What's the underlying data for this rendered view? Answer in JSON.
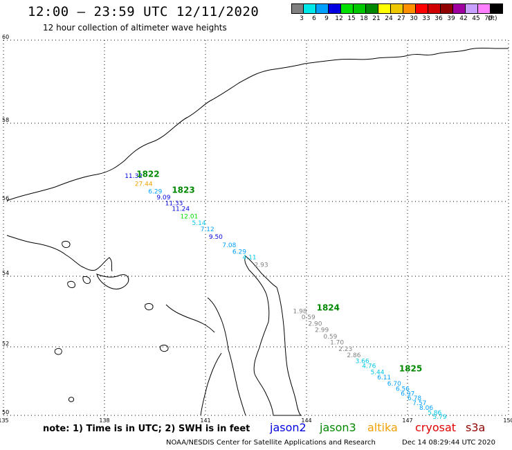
{
  "header": {
    "title": "12:00 – 23:59 UTC 12/11/2020",
    "subtitle": "12 hour collection of altimeter wave heights"
  },
  "legend": {
    "unit": "(ft)",
    "bins": [
      {
        "label": "3",
        "color": "#808080"
      },
      {
        "label": "6",
        "color": "#00e8e8"
      },
      {
        "label": "9",
        "color": "#00a0ff"
      },
      {
        "label": "12",
        "color": "#0000e0"
      },
      {
        "label": "15",
        "color": "#00e000"
      },
      {
        "label": "18",
        "color": "#00c800"
      },
      {
        "label": "21",
        "color": "#008800"
      },
      {
        "label": "24",
        "color": "#ffff00"
      },
      {
        "label": "27",
        "color": "#f0c800"
      },
      {
        "label": "30",
        "color": "#ff9000"
      },
      {
        "label": "33",
        "color": "#ff0000"
      },
      {
        "label": "36",
        "color": "#d00000"
      },
      {
        "label": "39",
        "color": "#900000"
      },
      {
        "label": "42",
        "color": "#a000a0"
      },
      {
        "label": "45",
        "color": "#c8a0ff"
      },
      {
        "label": "70",
        "color": "#ff80ff"
      },
      {
        "label": "",
        "color": "#000000"
      }
    ]
  },
  "axes": {
    "lon_ticks": [
      "135",
      "138",
      "141",
      "144",
      "147",
      "150"
    ],
    "lat_ticks": [
      "50",
      "52",
      "54",
      "56",
      "58",
      "60"
    ]
  },
  "observations": [
    {
      "value": "11.32",
      "color": "#0000e0",
      "lon": 138.6,
      "lat": 56.6
    },
    {
      "value": "27.44",
      "color": "#f0a000",
      "lon": 138.9,
      "lat": 56.4
    },
    {
      "value": "6.29",
      "color": "#00a0ff",
      "lon": 139.3,
      "lat": 56.2
    },
    {
      "value": "9.09",
      "color": "#0000e0",
      "lon": 139.55,
      "lat": 56.05
    },
    {
      "value": "11.33",
      "color": "#0000e0",
      "lon": 139.8,
      "lat": 55.9
    },
    {
      "value": "11.24",
      "color": "#0000e0",
      "lon": 140.0,
      "lat": 55.75
    },
    {
      "value": "12.01",
      "color": "#00e000",
      "lon": 140.25,
      "lat": 55.55
    },
    {
      "value": "5.14",
      "color": "#00c8e8",
      "lon": 140.6,
      "lat": 55.37
    },
    {
      "value": "7.12",
      "color": "#00a0ff",
      "lon": 140.85,
      "lat": 55.2
    },
    {
      "value": "9.50",
      "color": "#0000e0",
      "lon": 141.1,
      "lat": 55.0
    },
    {
      "value": "7.08",
      "color": "#00a0ff",
      "lon": 141.5,
      "lat": 54.78
    },
    {
      "value": "6.29",
      "color": "#00a0ff",
      "lon": 141.8,
      "lat": 54.6
    },
    {
      "value": "4.11",
      "color": "#00c8e8",
      "lon": 142.1,
      "lat": 54.45
    },
    {
      "value": "2.93",
      "color": "#808080",
      "lon": 142.45,
      "lat": 54.25
    },
    {
      "value": "1.98",
      "color": "#808080",
      "lon": 143.6,
      "lat": 52.95
    },
    {
      "value": "0.59",
      "color": "#808080",
      "lon": 143.85,
      "lat": 52.78
    },
    {
      "value": "2.90",
      "color": "#808080",
      "lon": 144.05,
      "lat": 52.6
    },
    {
      "value": "2.99",
      "color": "#808080",
      "lon": 144.25,
      "lat": 52.42
    },
    {
      "value": "0.59",
      "color": "#808080",
      "lon": 144.5,
      "lat": 52.24
    },
    {
      "value": "1.70",
      "color": "#808080",
      "lon": 144.7,
      "lat": 52.07
    },
    {
      "value": "2.23",
      "color": "#808080",
      "lon": 144.95,
      "lat": 51.88
    },
    {
      "value": "2.86",
      "color": "#808080",
      "lon": 145.2,
      "lat": 51.7
    },
    {
      "value": "3.66",
      "color": "#00c8e8",
      "lon": 145.45,
      "lat": 51.53
    },
    {
      "value": "4.76",
      "color": "#00c8e8",
      "lon": 145.65,
      "lat": 51.38
    },
    {
      "value": "5.44",
      "color": "#00c8e8",
      "lon": 145.9,
      "lat": 51.2
    },
    {
      "value": "6.11",
      "color": "#00a0ff",
      "lon": 146.1,
      "lat": 51.05
    },
    {
      "value": "6.70",
      "color": "#00a0ff",
      "lon": 146.4,
      "lat": 50.87
    },
    {
      "value": "6.56",
      "color": "#00a0ff",
      "lon": 146.65,
      "lat": 50.72
    },
    {
      "value": "6.97",
      "color": "#00a0ff",
      "lon": 146.8,
      "lat": 50.58
    },
    {
      "value": "6.78",
      "color": "#00a0ff",
      "lon": 147.0,
      "lat": 50.44
    },
    {
      "value": "7.57",
      "color": "#00a0ff",
      "lon": 147.15,
      "lat": 50.3
    },
    {
      "value": "8.06",
      "color": "#00a0ff",
      "lon": 147.35,
      "lat": 50.16
    },
    {
      "value": "5.86",
      "color": "#00c8e8",
      "lon": 147.6,
      "lat": 50.02
    },
    {
      "value": "5.79",
      "color": "#00c8e8",
      "lon": 147.75,
      "lat": 49.9
    }
  ],
  "times": [
    {
      "value": "1822",
      "color": "#008800",
      "lon": 138.95,
      "lat": 56.63
    },
    {
      "value": "1823",
      "color": "#008800",
      "lon": 140.0,
      "lat": 56.22
    },
    {
      "value": "1824",
      "color": "#008800",
      "lon": 144.3,
      "lat": 53.03
    },
    {
      "value": "1825",
      "color": "#008800",
      "lon": 146.75,
      "lat": 51.28
    }
  ],
  "footer": {
    "note": "note: 1) Time is in UTC; 2) SWH is in feet",
    "satellites": [
      {
        "name": "jason2",
        "color": "#0000e0"
      },
      {
        "name": "jason3",
        "color": "#008800"
      },
      {
        "name": "altika",
        "color": "#f0a000"
      },
      {
        "name": "cryosat",
        "color": "#e00000"
      },
      {
        "name": "s3a",
        "color": "#900000"
      }
    ],
    "credit": "NOAA/NESDIS Center for Satellite Applications and Research",
    "stamp": "Dec 14 08:29:44 UTC 2020"
  }
}
